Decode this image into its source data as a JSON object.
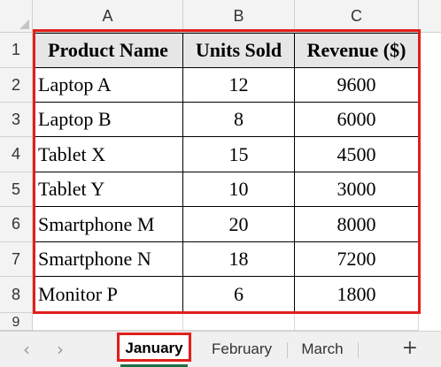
{
  "columns": [
    "A",
    "B",
    "C"
  ],
  "rows": [
    "1",
    "2",
    "3",
    "4",
    "5",
    "6",
    "7",
    "8",
    "9"
  ],
  "table": {
    "headers": [
      "Product Name",
      "Units Sold",
      "Revenue ($)"
    ],
    "data": [
      [
        "Laptop A",
        "12",
        "9600"
      ],
      [
        "Laptop B",
        "8",
        "6000"
      ],
      [
        "Tablet X",
        "15",
        "4500"
      ],
      [
        "Tablet Y",
        "10",
        "3000"
      ],
      [
        "Smartphone M",
        "20",
        "8000"
      ],
      [
        "Smartphone N",
        "18",
        "7200"
      ],
      [
        "Monitor P",
        "6",
        "1800"
      ]
    ]
  },
  "sheet_tabs": {
    "prev_icon": "chevron-left-icon",
    "next_icon": "chevron-right-icon",
    "prev_glyph": "‹",
    "next_glyph": "›",
    "tabs": [
      "January",
      "February",
      "March"
    ],
    "active": "January",
    "add_glyph": "+"
  },
  "colors": {
    "highlight": "#e0201c",
    "header_fill": "#e7e6e6",
    "active_tab_underline": "#1e7145"
  }
}
